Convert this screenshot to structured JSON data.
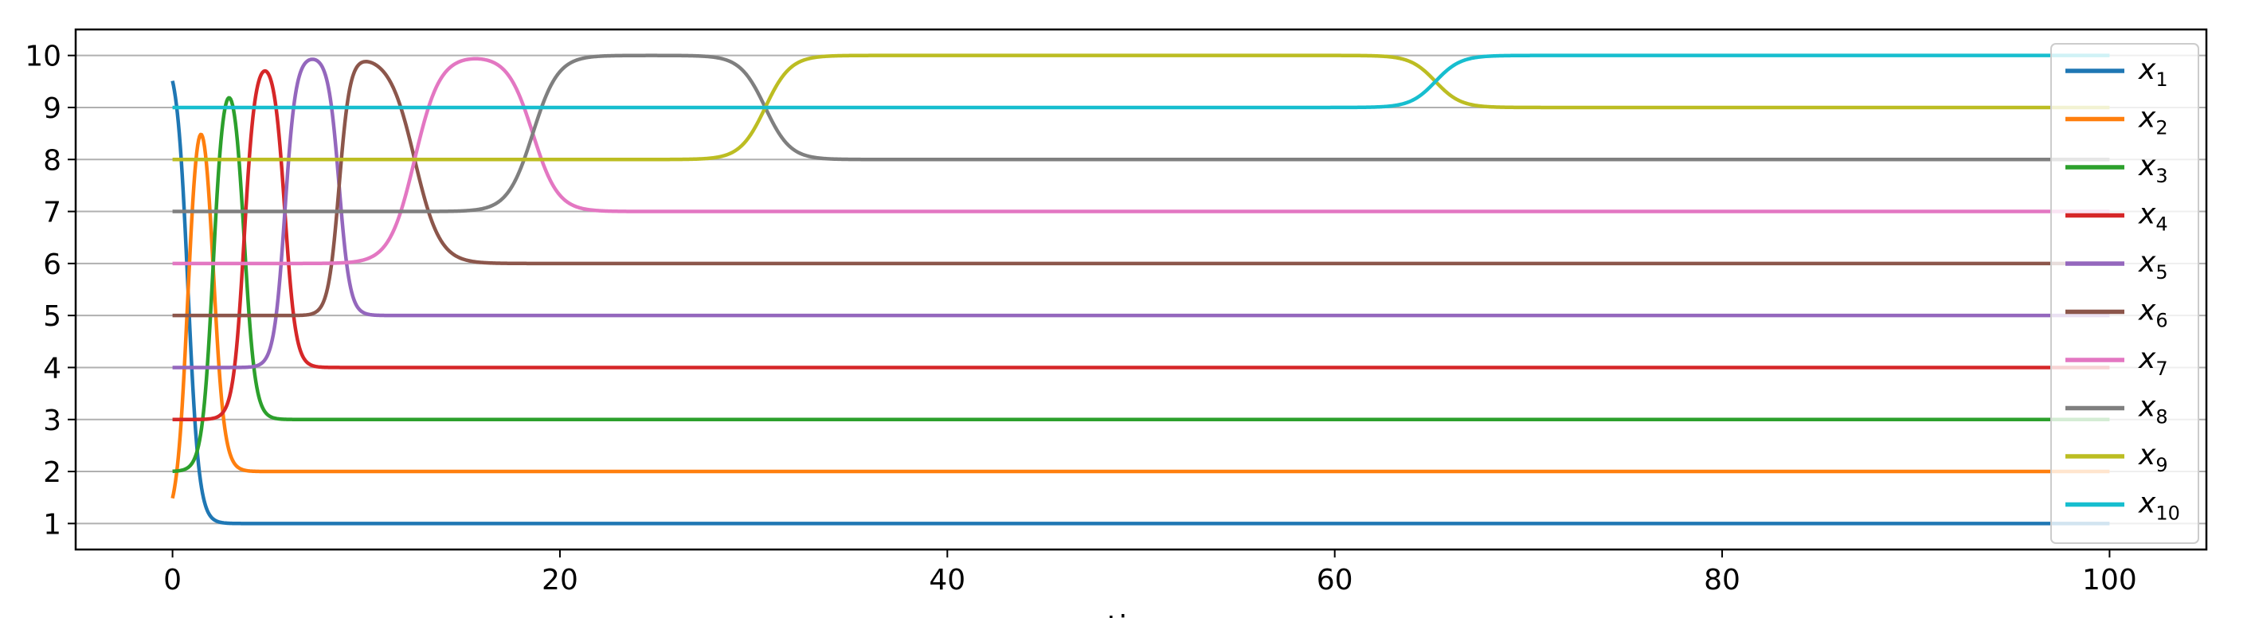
{
  "chart_data": {
    "type": "line",
    "title": "",
    "xlabel": "time",
    "ylabel": "",
    "xlim": [
      -5,
      105
    ],
    "ylim": [
      0.5,
      10.5
    ],
    "x_ticks": [
      0,
      20,
      40,
      60,
      80,
      100
    ],
    "y_ticks": [
      1,
      2,
      3,
      4,
      5,
      6,
      7,
      8,
      9,
      10
    ],
    "grid": "horizontal",
    "legend_position": "right",
    "x_range": [
      0,
      100
    ],
    "series": [
      {
        "name": "x",
        "sub": "1",
        "color": "#1f77b4",
        "start": 10,
        "swaps": [
          {
            "t": 0.8,
            "to": 1
          }
        ]
      },
      {
        "name": "x",
        "sub": "2",
        "color": "#ff7f0e",
        "start": 1,
        "swaps": [
          {
            "t": 0.8,
            "to": 10
          },
          {
            "t": 2.1,
            "to": 2
          }
        ]
      },
      {
        "name": "x",
        "sub": "3",
        "color": "#2ca02c",
        "start": 2,
        "swaps": [
          {
            "t": 2.1,
            "to": 10
          },
          {
            "t": 3.7,
            "to": 3
          }
        ]
      },
      {
        "name": "x",
        "sub": "4",
        "color": "#d62728",
        "start": 3,
        "swaps": [
          {
            "t": 3.7,
            "to": 10
          },
          {
            "t": 5.8,
            "to": 4
          }
        ]
      },
      {
        "name": "x",
        "sub": "5",
        "color": "#9467bd",
        "start": 4,
        "swaps": [
          {
            "t": 5.8,
            "to": 10
          },
          {
            "t": 8.6,
            "to": 5
          }
        ]
      },
      {
        "name": "x",
        "sub": "6",
        "color": "#8c564b",
        "start": 5,
        "swaps": [
          {
            "t": 8.6,
            "to": 10
          },
          {
            "t": 12.5,
            "to": 6
          }
        ]
      },
      {
        "name": "x",
        "sub": "7",
        "color": "#e377c2",
        "start": 6,
        "swaps": [
          {
            "t": 12.5,
            "to": 10
          },
          {
            "t": 18.6,
            "to": 7
          }
        ]
      },
      {
        "name": "x",
        "sub": "8",
        "color": "#7f7f7f",
        "start": 7,
        "swaps": [
          {
            "t": 18.6,
            "to": 10
          },
          {
            "t": 30.6,
            "to": 8
          }
        ]
      },
      {
        "name": "x",
        "sub": "9",
        "color": "#bcbd22",
        "start": 8,
        "swaps": [
          {
            "t": 30.6,
            "to": 10
          },
          {
            "t": 65.2,
            "to": 9
          }
        ]
      },
      {
        "name": "x",
        "sub": "10",
        "color": "#17becf",
        "start": 9,
        "swaps": [
          {
            "t": 65.2,
            "to": 10
          }
        ]
      }
    ]
  }
}
